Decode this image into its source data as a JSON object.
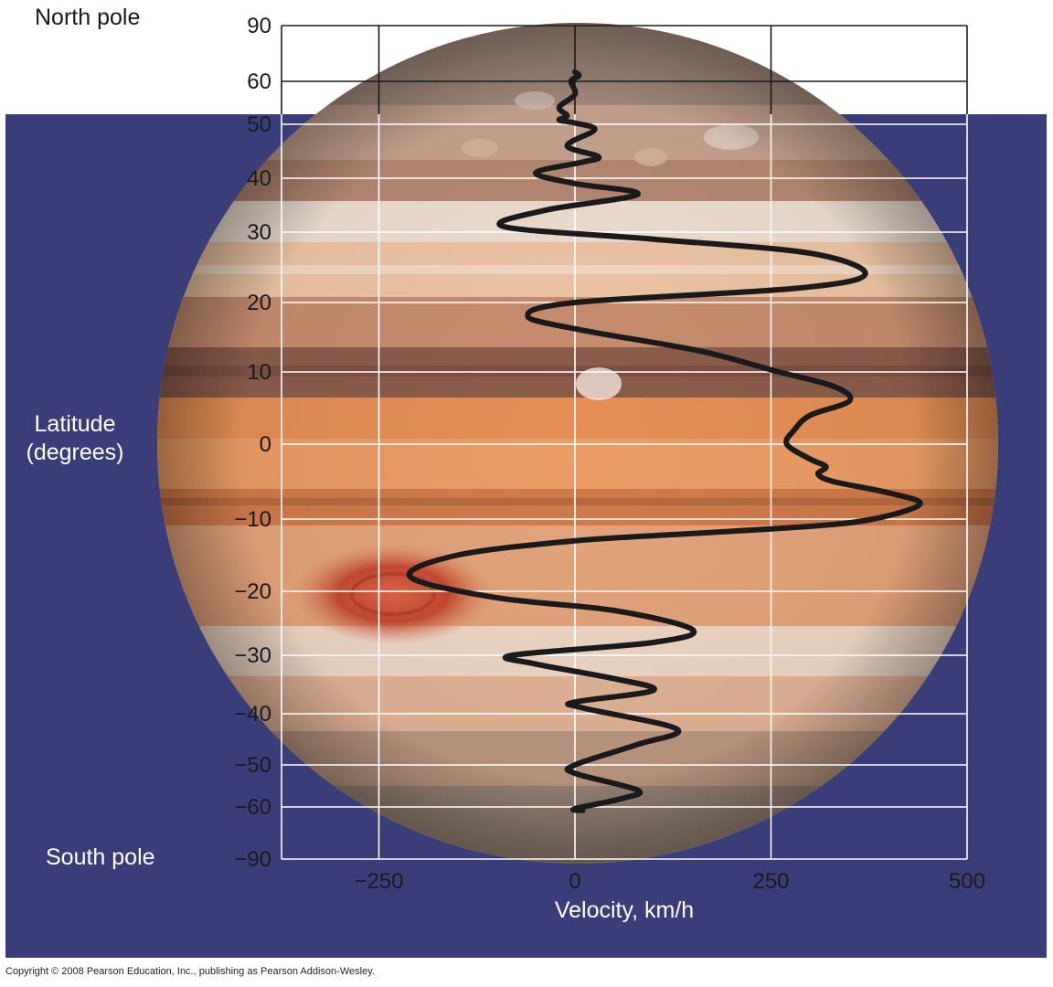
{
  "labels": {
    "north_pole": "North pole",
    "south_pole": "South pole",
    "latitude_line1": "Latitude",
    "latitude_line2": "(degrees)",
    "copyright": "Copyright © 2008 Pearson Education, Inc., publishing as Pearson Addison-Wesley."
  },
  "colors": {
    "background_panel": "#3b3d78",
    "grid_line": "#ffffff",
    "curve": "#1a1a1a",
    "planet_base": "#d98a55",
    "planet_band_dark": "#8a5b48",
    "planet_band_light": "#f1dfcf",
    "great_red_spot": "#c64a34"
  },
  "chart_data": {
    "type": "line",
    "title": "",
    "xlabel": "Velocity, km/h",
    "ylabel": "Latitude (degrees)",
    "xlim": [
      -360,
      500
    ],
    "ylim": [
      -90,
      90
    ],
    "x_ticks": [
      -250,
      0,
      250,
      500
    ],
    "x_tick_labels": [
      "−250",
      "0",
      "250",
      "500"
    ],
    "y_ticks": [
      90,
      60,
      50,
      40,
      30,
      20,
      10,
      0,
      -10,
      -20,
      -30,
      -40,
      -50,
      -60,
      -90
    ],
    "y_tick_labels": [
      "90",
      "60",
      "50",
      "40",
      "30",
      "20",
      "10",
      "0",
      "−10",
      "−20",
      "−30",
      "−40",
      "−50",
      "−60",
      "−90"
    ],
    "grid": true,
    "background_image": "jupiter-planet",
    "series": [
      {
        "name": "",
        "points": [
          [
            0,
            65
          ],
          [
            5,
            63
          ],
          [
            -5,
            60
          ],
          [
            0,
            57
          ],
          [
            -20,
            54
          ],
          [
            -10,
            52
          ],
          [
            -20,
            51
          ],
          [
            0,
            50.3
          ],
          [
            25,
            49
          ],
          [
            -10,
            46
          ],
          [
            30,
            44
          ],
          [
            10,
            43
          ],
          [
            -50,
            41
          ],
          [
            0,
            39
          ],
          [
            80,
            37
          ],
          [
            -40,
            34
          ],
          [
            -90,
            31
          ],
          [
            100,
            29
          ],
          [
            300,
            27
          ],
          [
            370,
            24
          ],
          [
            280,
            22
          ],
          [
            0,
            20
          ],
          [
            -60,
            18
          ],
          [
            10,
            16
          ],
          [
            160,
            13
          ],
          [
            260,
            10
          ],
          [
            330,
            8
          ],
          [
            350,
            6
          ],
          [
            300,
            4
          ],
          [
            280,
            2
          ],
          [
            270,
            0
          ],
          [
            300,
            -2
          ],
          [
            320,
            -3
          ],
          [
            310,
            -4
          ],
          [
            330,
            -5
          ],
          [
            400,
            -6.5
          ],
          [
            440,
            -8
          ],
          [
            380,
            -10
          ],
          [
            300,
            -11
          ],
          [
            150,
            -12
          ],
          [
            0,
            -13
          ],
          [
            -150,
            -15
          ],
          [
            -210,
            -18
          ],
          [
            -100,
            -21
          ],
          [
            50,
            -23
          ],
          [
            150,
            -26
          ],
          [
            100,
            -28
          ],
          [
            -80,
            -30
          ],
          [
            -50,
            -31.5
          ],
          [
            50,
            -34
          ],
          [
            100,
            -36
          ],
          [
            0,
            -38
          ],
          [
            10,
            -39
          ],
          [
            130,
            -43
          ],
          [
            80,
            -46
          ],
          [
            0,
            -50
          ],
          [
            0,
            -52
          ],
          [
            80,
            -56
          ],
          [
            60,
            -58
          ],
          [
            0,
            -61
          ],
          [
            10,
            -62
          ]
        ]
      }
    ]
  }
}
